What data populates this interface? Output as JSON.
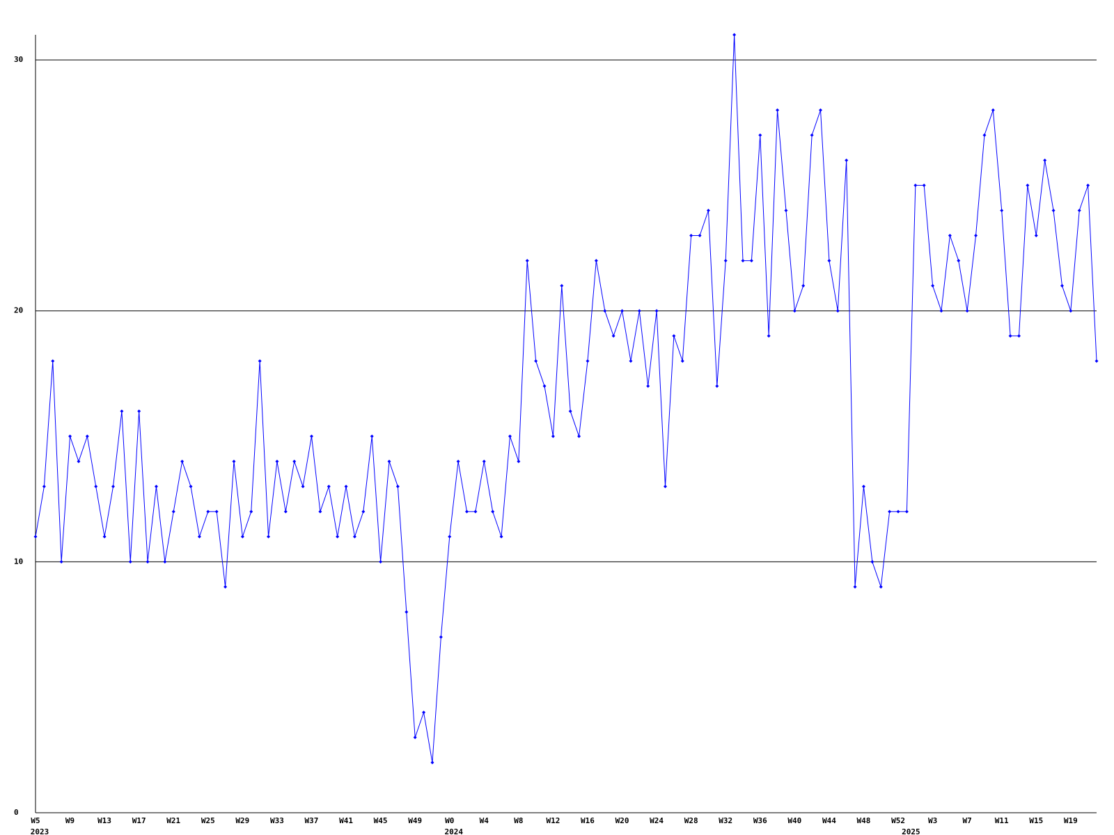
{
  "chart_data": {
    "type": "line",
    "categories": [
      "W5",
      null,
      null,
      null,
      "W9",
      null,
      null,
      null,
      "W13",
      null,
      null,
      null,
      "W17",
      null,
      null,
      null,
      "W21",
      null,
      null,
      null,
      "W25",
      null,
      null,
      null,
      "W29",
      null,
      null,
      null,
      "W33",
      null,
      null,
      null,
      "W37",
      null,
      null,
      null,
      "W41",
      null,
      null,
      null,
      "W45",
      null,
      null,
      null,
      "W49",
      null,
      null,
      null,
      "W0",
      null,
      null,
      null,
      "W4",
      null,
      null,
      null,
      "W8",
      null,
      null,
      null,
      "W12",
      null,
      null,
      null,
      "W16",
      null,
      null,
      null,
      "W20",
      null,
      null,
      null,
      "W24",
      null,
      null,
      null,
      "W28",
      null,
      null,
      null,
      "W32",
      null,
      null,
      null,
      "W36",
      null,
      null,
      null,
      "W40",
      null,
      null,
      null,
      "W44",
      null,
      null,
      null,
      "W48",
      null,
      null,
      null,
      "W52",
      null,
      null,
      null,
      "W3",
      null,
      null,
      null,
      "W7",
      null,
      null,
      null,
      "W11",
      null,
      null,
      null,
      "W15",
      null,
      null,
      null,
      "W19",
      null,
      null,
      null
    ],
    "year_labels": [
      "2023",
      null,
      null,
      null,
      null,
      null,
      null,
      null,
      null,
      null,
      null,
      null,
      null,
      null,
      null,
      null,
      null,
      null,
      null,
      null,
      null,
      null,
      null,
      null,
      null,
      null,
      null,
      null,
      null,
      null,
      null,
      null,
      null,
      null,
      null,
      null,
      null,
      null,
      null,
      null,
      null,
      null,
      null,
      null,
      null,
      null,
      null,
      null,
      "2024",
      null,
      null,
      null,
      null,
      null,
      null,
      null,
      null,
      null,
      null,
      null,
      null,
      null,
      null,
      null,
      null,
      null,
      null,
      null,
      null,
      null,
      null,
      null,
      null,
      null,
      null,
      null,
      null,
      null,
      null,
      null,
      null,
      null,
      null,
      null,
      null,
      null,
      null,
      null,
      null,
      null,
      null,
      null,
      null,
      null,
      null,
      null,
      null,
      null,
      null,
      null,
      null,
      "2025",
      null,
      null,
      null,
      null,
      null,
      null,
      null,
      null,
      null,
      null,
      null,
      null,
      null,
      null,
      null,
      null,
      null,
      null,
      null,
      null,
      null,
      null
    ],
    "values": [
      11,
      13,
      18,
      10,
      15,
      14,
      15,
      13,
      11,
      13,
      16,
      10,
      16,
      10,
      13,
      10,
      12,
      14,
      13,
      11,
      12,
      12,
      9,
      14,
      11,
      12,
      18,
      11,
      14,
      12,
      14,
      13,
      15,
      12,
      13,
      11,
      13,
      11,
      12,
      15,
      10,
      14,
      13,
      8,
      3,
      4,
      2,
      7,
      11,
      14,
      12,
      12,
      14,
      12,
      11,
      15,
      14,
      22,
      18,
      17,
      15,
      21,
      16,
      15,
      18,
      22,
      20,
      19,
      20,
      18,
      20,
      17,
      20,
      13,
      19,
      18,
      23,
      23,
      24,
      17,
      22,
      31,
      22,
      22,
      27,
      19,
      28,
      24,
      20,
      21,
      27,
      28,
      22,
      20,
      26,
      9,
      13,
      10,
      9,
      12,
      12,
      12,
      25,
      25,
      21,
      20,
      23,
      22,
      20,
      23,
      27,
      28,
      24,
      19,
      19,
      25,
      23,
      26,
      24,
      21,
      20,
      24,
      25,
      18
    ],
    "color": "#0000ff",
    "ylim": [
      0,
      31
    ],
    "yticks": [
      0,
      10,
      20,
      30
    ],
    "grid": true
  }
}
